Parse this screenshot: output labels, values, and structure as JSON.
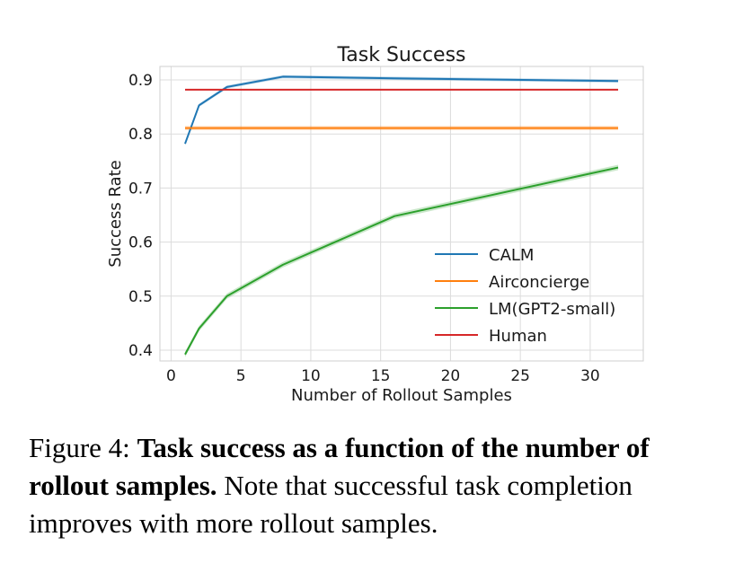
{
  "chart_data": {
    "type": "line",
    "title": "Task Success",
    "xlabel": "Number of Rollout Samples",
    "ylabel": "Success Rate",
    "xlim": [
      -0.8,
      33.8
    ],
    "ylim": [
      0.38,
      0.925
    ],
    "xticks": [
      0,
      5,
      10,
      15,
      20,
      25,
      30
    ],
    "xtick_labels": [
      "0",
      "5",
      "10",
      "15",
      "20",
      "25",
      "30"
    ],
    "yticks": [
      0.4,
      0.5,
      0.6,
      0.7,
      0.8,
      0.9
    ],
    "ytick_labels": [
      "0.4",
      "0.5",
      "0.6",
      "0.7",
      "0.8",
      "0.9"
    ],
    "grid": true,
    "legend_position": "lower-right",
    "series": [
      {
        "name": "CALM",
        "color": "#1f77b4",
        "x": [
          1,
          2,
          4,
          8,
          16,
          32
        ],
        "y": [
          0.782,
          0.853,
          0.887,
          0.906,
          0.903,
          0.898
        ],
        "band": 0.003
      },
      {
        "name": "Airconcierge",
        "color": "#ff7f0e",
        "x": [
          1,
          32
        ],
        "y": [
          0.811,
          0.811
        ],
        "band": 0.004
      },
      {
        "name": "LM(GPT2-small)",
        "color": "#2ca02c",
        "x": [
          1,
          2,
          4,
          8,
          16,
          32
        ],
        "y": [
          0.392,
          0.44,
          0.5,
          0.558,
          0.648,
          0.738
        ],
        "band": 0.005
      },
      {
        "name": "Human",
        "color": "#d62728",
        "x": [
          1,
          32
        ],
        "y": [
          0.882,
          0.882
        ],
        "band": 0
      }
    ]
  },
  "caption": {
    "label": "Figure 4: ",
    "bold": "Task success as a function of the number of rollout samples.",
    "rest": " Note that successful task completion improves with more rollout samples."
  }
}
